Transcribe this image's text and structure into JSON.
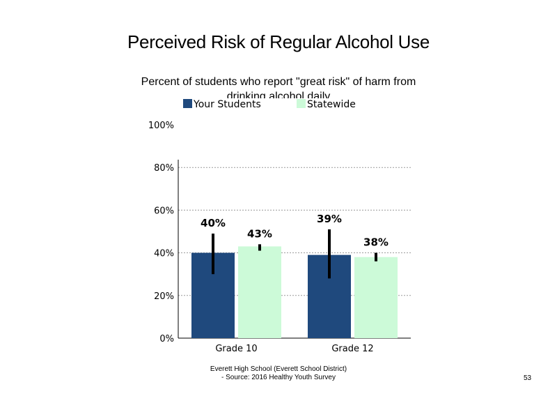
{
  "chart_data": {
    "type": "bar",
    "title": "Perceived Risk of Regular Alcohol Use",
    "subtitle": "Percent of students who report \"great risk\" of harm from drinking alcohol daily",
    "categories": [
      "Grade 10",
      "Grade 12"
    ],
    "series": [
      {
        "name": "Your Students",
        "color": "#1F497D",
        "values": [
          40,
          39
        ],
        "labels": [
          "40%",
          "39%"
        ],
        "error_low": [
          30,
          28
        ],
        "error_high": [
          49,
          51
        ]
      },
      {
        "name": "Statewide",
        "color": "#CCFAD8",
        "values": [
          43,
          38
        ],
        "labels": [
          "43%",
          "38%"
        ],
        "error_low": [
          41,
          36
        ],
        "error_high": [
          44,
          40
        ]
      }
    ],
    "y_ticks": [
      "0%",
      "20%",
      "40%",
      "60%",
      "80%",
      "100%"
    ],
    "ylim": [
      0,
      100
    ],
    "grid": true,
    "legend_position": "top"
  },
  "footer": {
    "line1": "Everett High School (Everett School District)",
    "line2": "- Source: 2016 Healthy Youth Survey"
  },
  "page_number": "53"
}
